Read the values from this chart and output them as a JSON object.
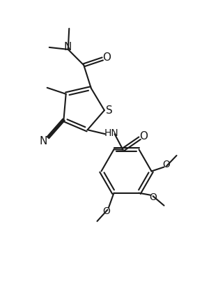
{
  "bg_color": "#ffffff",
  "line_color": "#1a1a1a",
  "line_width": 1.5,
  "figsize": [
    3.03,
    4.13
  ],
  "dpi": 100,
  "xlim": [
    0,
    10
  ],
  "ylim": [
    0,
    13.6
  ]
}
